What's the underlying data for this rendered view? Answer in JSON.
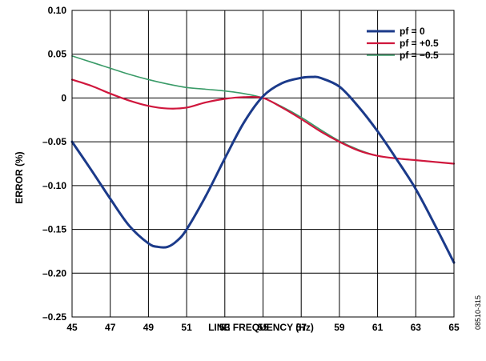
{
  "chart_data": {
    "type": "line",
    "xlabel": "LINE FREQUENCY (Hz)",
    "ylabel": "ERROR (%)",
    "xlim": [
      45,
      65
    ],
    "ylim": [
      -0.25,
      0.1
    ],
    "x_ticks": [
      45,
      47,
      49,
      51,
      53,
      55,
      57,
      59,
      61,
      63,
      65
    ],
    "x_tick_labels": [
      "45",
      "47",
      "49",
      "51",
      "53",
      "55",
      "57",
      "59",
      "61",
      "63",
      "65"
    ],
    "y_ticks": [
      0.1,
      0.05,
      0,
      -0.05,
      -0.1,
      -0.15,
      -0.2,
      -0.25
    ],
    "y_tick_labels": [
      "0.10",
      "0.05",
      "0",
      "–0.05",
      "–0.10",
      "–0.15",
      "–0.20",
      "–0.25"
    ],
    "grid": true,
    "legend_position": "top-right",
    "series": [
      {
        "name": "pf = 0",
        "color": "#1b3a8a",
        "x": [
          45,
          46,
          47,
          48,
          49,
          49.5,
          50,
          50.5,
          51,
          52,
          53,
          54,
          55,
          56,
          57,
          57.6,
          58,
          59,
          60,
          61,
          62,
          63,
          64,
          65
        ],
        "y": [
          -0.05,
          -0.082,
          -0.115,
          -0.146,
          -0.166,
          -0.17,
          -0.17,
          -0.163,
          -0.15,
          -0.112,
          -0.069,
          -0.028,
          0.002,
          0.017,
          0.023,
          0.024,
          0.023,
          0.013,
          -0.01,
          -0.038,
          -0.07,
          -0.104,
          -0.145,
          -0.188
        ]
      },
      {
        "name": "pf = +0.5",
        "color": "#d0173d",
        "x": [
          45,
          46,
          47,
          48,
          49,
          50,
          51,
          52,
          53,
          54,
          55,
          56,
          57,
          58,
          59,
          60,
          61,
          62,
          63,
          64,
          65
        ],
        "y": [
          0.021,
          0.014,
          0.005,
          -0.003,
          -0.009,
          -0.012,
          -0.011,
          -0.005,
          -0.001,
          0.001,
          0.0,
          -0.011,
          -0.024,
          -0.038,
          -0.05,
          -0.06,
          -0.066,
          -0.069,
          -0.071,
          -0.073,
          -0.075
        ]
      },
      {
        "name": "pf = −0.5",
        "color": "#3a9b68",
        "x": [
          45,
          46,
          47,
          48,
          49,
          50,
          51,
          52,
          53,
          54,
          55,
          56,
          57,
          58,
          59,
          60,
          61,
          62,
          63,
          64,
          65
        ],
        "y": [
          0.048,
          0.041,
          0.034,
          0.027,
          0.021,
          0.016,
          0.012,
          0.01,
          0.008,
          0.005,
          0.0,
          -0.01,
          -0.022,
          -0.036,
          -0.049,
          -0.059,
          -0.066,
          -0.069,
          -0.071,
          -0.073,
          -0.075
        ]
      }
    ]
  },
  "figure_id": "08510-315"
}
